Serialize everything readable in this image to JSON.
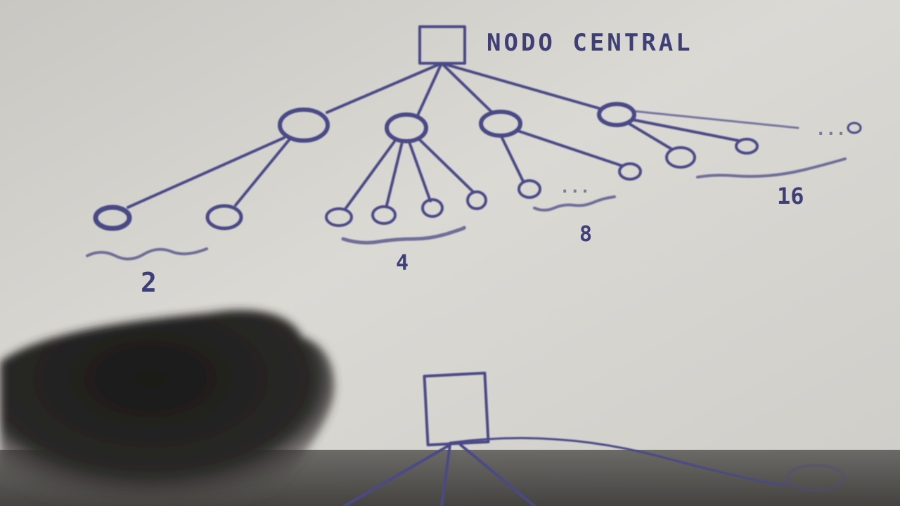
{
  "diagram": {
    "central_label": "NODO CENTRAL",
    "group_counts": [
      "2",
      "4",
      "8",
      "16"
    ],
    "ellipsis": "...",
    "colors": {
      "paper": "#d6d4cf",
      "ink": "#4a4a86",
      "shadow": "#1b1a19",
      "table": "#3a3836"
    }
  }
}
